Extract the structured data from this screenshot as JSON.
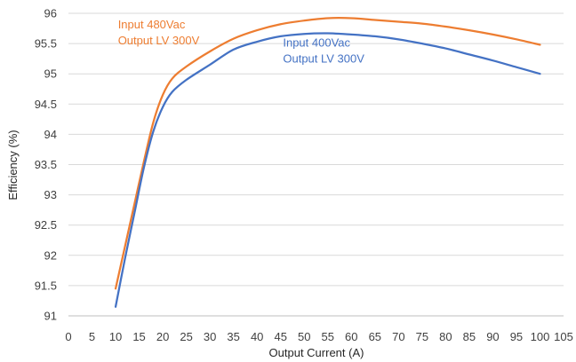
{
  "chart_data": {
    "type": "line",
    "xlabel": "Output Current (A)",
    "ylabel": "Efficiency (%)",
    "xlim": [
      0,
      105
    ],
    "ylim": [
      91,
      96
    ],
    "xticks": [
      0,
      5,
      10,
      15,
      20,
      25,
      30,
      35,
      40,
      45,
      50,
      55,
      60,
      65,
      70,
      75,
      80,
      85,
      90,
      95,
      100,
      105
    ],
    "yticks": [
      91,
      91.5,
      92,
      92.5,
      93,
      93.5,
      94,
      94.5,
      95,
      95.5,
      96
    ],
    "grid": "horizontal",
    "series": [
      {
        "color": "#ED7D31",
        "x": [
          10,
          12,
          14,
          16,
          18,
          20,
          22,
          25,
          30,
          35,
          40,
          45,
          50,
          55,
          60,
          65,
          70,
          75,
          80,
          85,
          90,
          95,
          100
        ],
        "values": [
          91.45,
          92.15,
          92.85,
          93.55,
          94.2,
          94.65,
          94.92,
          95.12,
          95.37,
          95.58,
          95.72,
          95.82,
          95.88,
          95.92,
          95.92,
          95.89,
          95.86,
          95.83,
          95.78,
          95.72,
          95.65,
          95.57,
          95.48
        ]
      },
      {
        "color": "#4472C4",
        "x": [
          10,
          12,
          14,
          16,
          18,
          20,
          22,
          25,
          30,
          35,
          40,
          45,
          50,
          55,
          60,
          65,
          70,
          75,
          80,
          85,
          90,
          95,
          100
        ],
        "values": [
          91.15,
          91.95,
          92.7,
          93.45,
          94.05,
          94.45,
          94.7,
          94.9,
          95.15,
          95.4,
          95.53,
          95.62,
          95.66,
          95.67,
          95.65,
          95.62,
          95.57,
          95.5,
          95.42,
          95.32,
          95.22,
          95.11,
          95.0
        ]
      }
    ],
    "annotations": [
      {
        "lines": [
          "Input 480Vac",
          "Output LV 300V"
        ],
        "color": "#ED7D31",
        "x": 10.5,
        "y": 95.75
      },
      {
        "lines": [
          "Input 400Vac",
          "Output LV 300V"
        ],
        "color": "#4472C4",
        "x": 45.5,
        "y": 95.45
      }
    ]
  }
}
